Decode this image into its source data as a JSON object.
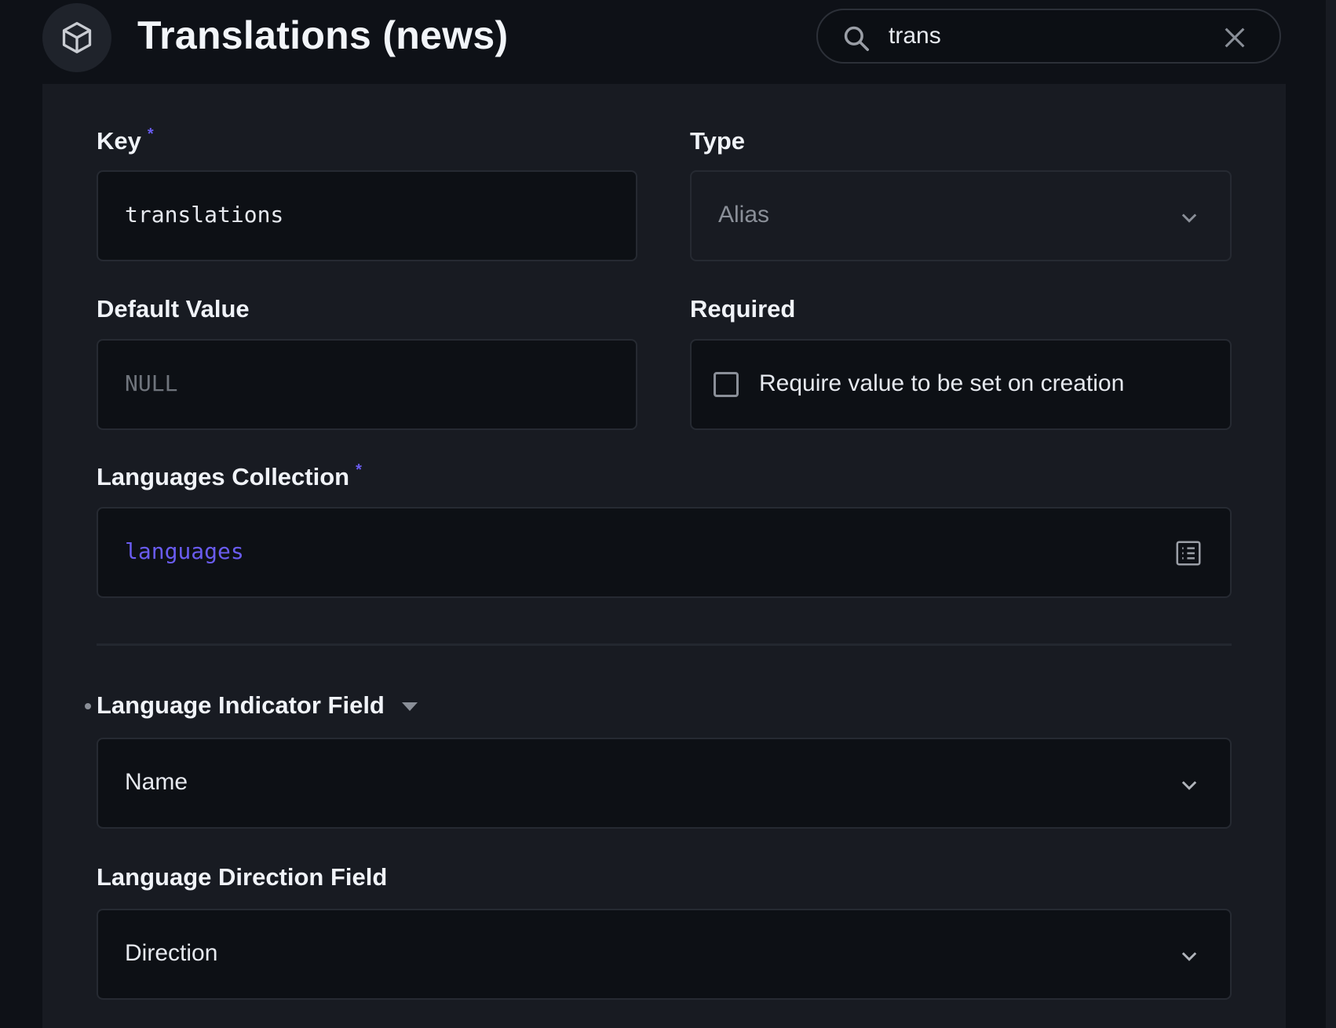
{
  "header": {
    "title": "Translations (news)",
    "icon": "cube-icon"
  },
  "search": {
    "value": "trans",
    "icon": "search-icon",
    "clear_icon": "close-icon"
  },
  "form": {
    "key": {
      "label": "Key",
      "required_mark": "*",
      "value": "translations"
    },
    "type": {
      "label": "Type",
      "value": "Alias"
    },
    "default_value": {
      "label": "Default Value",
      "placeholder": "NULL"
    },
    "required": {
      "label": "Required",
      "checkbox_label": "Require value to be set on creation",
      "checked": false
    },
    "languages_collection": {
      "label": "Languages Collection",
      "required_mark": "*",
      "value": "languages"
    },
    "language_indicator": {
      "label": "Language Indicator Field",
      "value": "Name"
    },
    "language_direction": {
      "label": "Language Direction Field",
      "value": "Direction"
    }
  },
  "colors": {
    "accent": "#6a5cf0",
    "background": "#0e1117",
    "panel": "#181b22",
    "input": "#0d1015"
  }
}
